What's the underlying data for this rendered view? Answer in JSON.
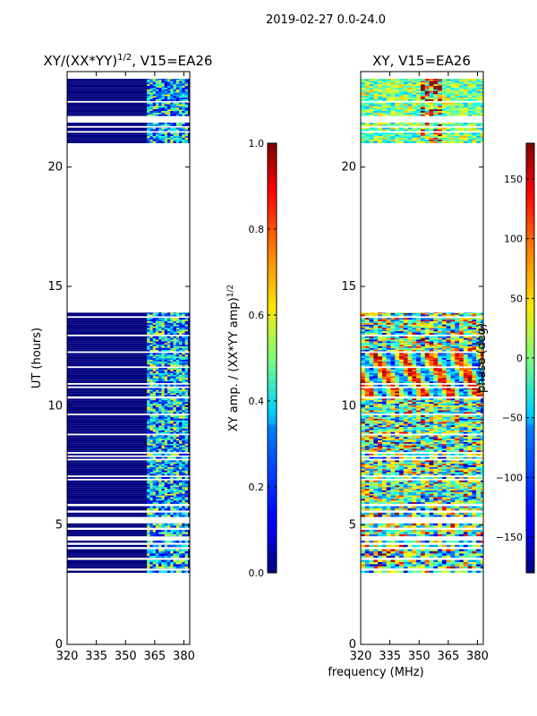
{
  "figure_title": "2019-02-27 0.0-24.0",
  "chart_data": [
    {
      "type": "heatmap",
      "title_main": "XY/(XX*YY)",
      "title_sup": "1/2",
      "title_tail": ", V15=EA26",
      "xlabel": "",
      "ylabel": "UT (hours)",
      "xlim": [
        320,
        383
      ],
      "ylim": [
        0,
        24
      ],
      "xticks": [
        320,
        335,
        350,
        365,
        380
      ],
      "yticks": [
        0,
        5,
        10,
        15,
        20
      ],
      "xtick_labels": [
        "320",
        "335",
        "350",
        "365",
        "380"
      ],
      "ytick_labels": [
        "0",
        "5",
        "10",
        "15",
        "20"
      ],
      "colormap": "jet",
      "quantity": "amplitude",
      "data_blocks_ut": [
        [
          3.0,
          5.8
        ],
        [
          5.8,
          10.3
        ],
        [
          10.3,
          13.9
        ],
        [
          21.0,
          23.7
        ]
      ],
      "noise_band_mhz": [
        361,
        382
      ],
      "colorbar": {
        "label_main": "XY amp. / (XX*YY amp)",
        "label_sup": "1/2",
        "range": [
          0.0,
          1.0
        ],
        "ticks": [
          0.0,
          0.2,
          0.4,
          0.6,
          0.8,
          1.0
        ],
        "tick_labels": [
          "0.0",
          "0.2",
          "0.4",
          "0.6",
          "0.8",
          "1.0"
        ]
      }
    },
    {
      "type": "heatmap",
      "title": "XY, V15=EA26",
      "xlabel": "frequency (MHz)",
      "ylabel": "",
      "xlim": [
        320,
        383
      ],
      "ylim": [
        0,
        24
      ],
      "xticks": [
        320,
        335,
        350,
        365,
        380
      ],
      "yticks": [
        0,
        5,
        10,
        15,
        20
      ],
      "xtick_labels": [
        "320",
        "335",
        "350",
        "365",
        "380"
      ],
      "ytick_labels": [
        "0",
        "5",
        "10",
        "15",
        "20"
      ],
      "colormap": "jet",
      "quantity": "phase",
      "data_blocks_ut": [
        [
          3.0,
          13.9
        ],
        [
          21.0,
          23.7
        ]
      ],
      "colorbar": {
        "label": "phase (deg)",
        "range": [
          -180,
          180
        ],
        "ticks": [
          -150,
          -100,
          -50,
          0,
          50,
          100,
          150
        ],
        "tick_labels": [
          "−150",
          "−100",
          "−50",
          "0",
          "50",
          "100",
          "150"
        ]
      }
    }
  ]
}
